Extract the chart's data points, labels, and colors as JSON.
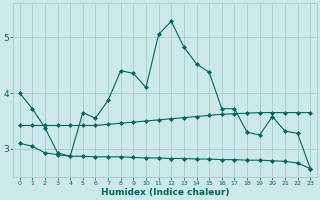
{
  "xlabel": "Humidex (Indice chaleur)",
  "background_color": "#cce8e8",
  "grid_color": "#aacccc",
  "line_color": "#006666",
  "x_values": [
    0,
    1,
    2,
    3,
    4,
    5,
    6,
    7,
    8,
    9,
    10,
    11,
    12,
    13,
    14,
    15,
    16,
    17,
    18,
    19,
    20,
    21,
    22,
    23
  ],
  "line1": [
    4.0,
    3.72,
    3.38,
    2.93,
    2.87,
    3.65,
    3.55,
    3.87,
    4.4,
    4.35,
    4.1,
    5.05,
    5.28,
    4.82,
    4.52,
    4.37,
    3.72,
    3.72,
    3.3,
    3.25,
    3.58,
    3.32,
    3.28,
    2.65
  ],
  "line2": [
    3.42,
    3.42,
    3.42,
    3.42,
    3.42,
    3.42,
    3.42,
    3.44,
    3.46,
    3.48,
    3.5,
    3.52,
    3.54,
    3.56,
    3.58,
    3.6,
    3.62,
    3.63,
    3.64,
    3.65,
    3.65,
    3.65,
    3.65,
    3.65
  ],
  "line3": [
    3.1,
    3.05,
    2.93,
    2.9,
    2.87,
    2.87,
    2.86,
    2.86,
    2.86,
    2.85,
    2.84,
    2.84,
    2.83,
    2.83,
    2.82,
    2.82,
    2.81,
    2.81,
    2.8,
    2.8,
    2.79,
    2.78,
    2.75,
    2.65
  ],
  "ylim": [
    2.5,
    5.6
  ],
  "yticks": [
    3,
    4,
    5
  ],
  "xlim": [
    -0.5,
    23.5
  ],
  "figsize": [
    3.2,
    2.0
  ],
  "dpi": 100
}
